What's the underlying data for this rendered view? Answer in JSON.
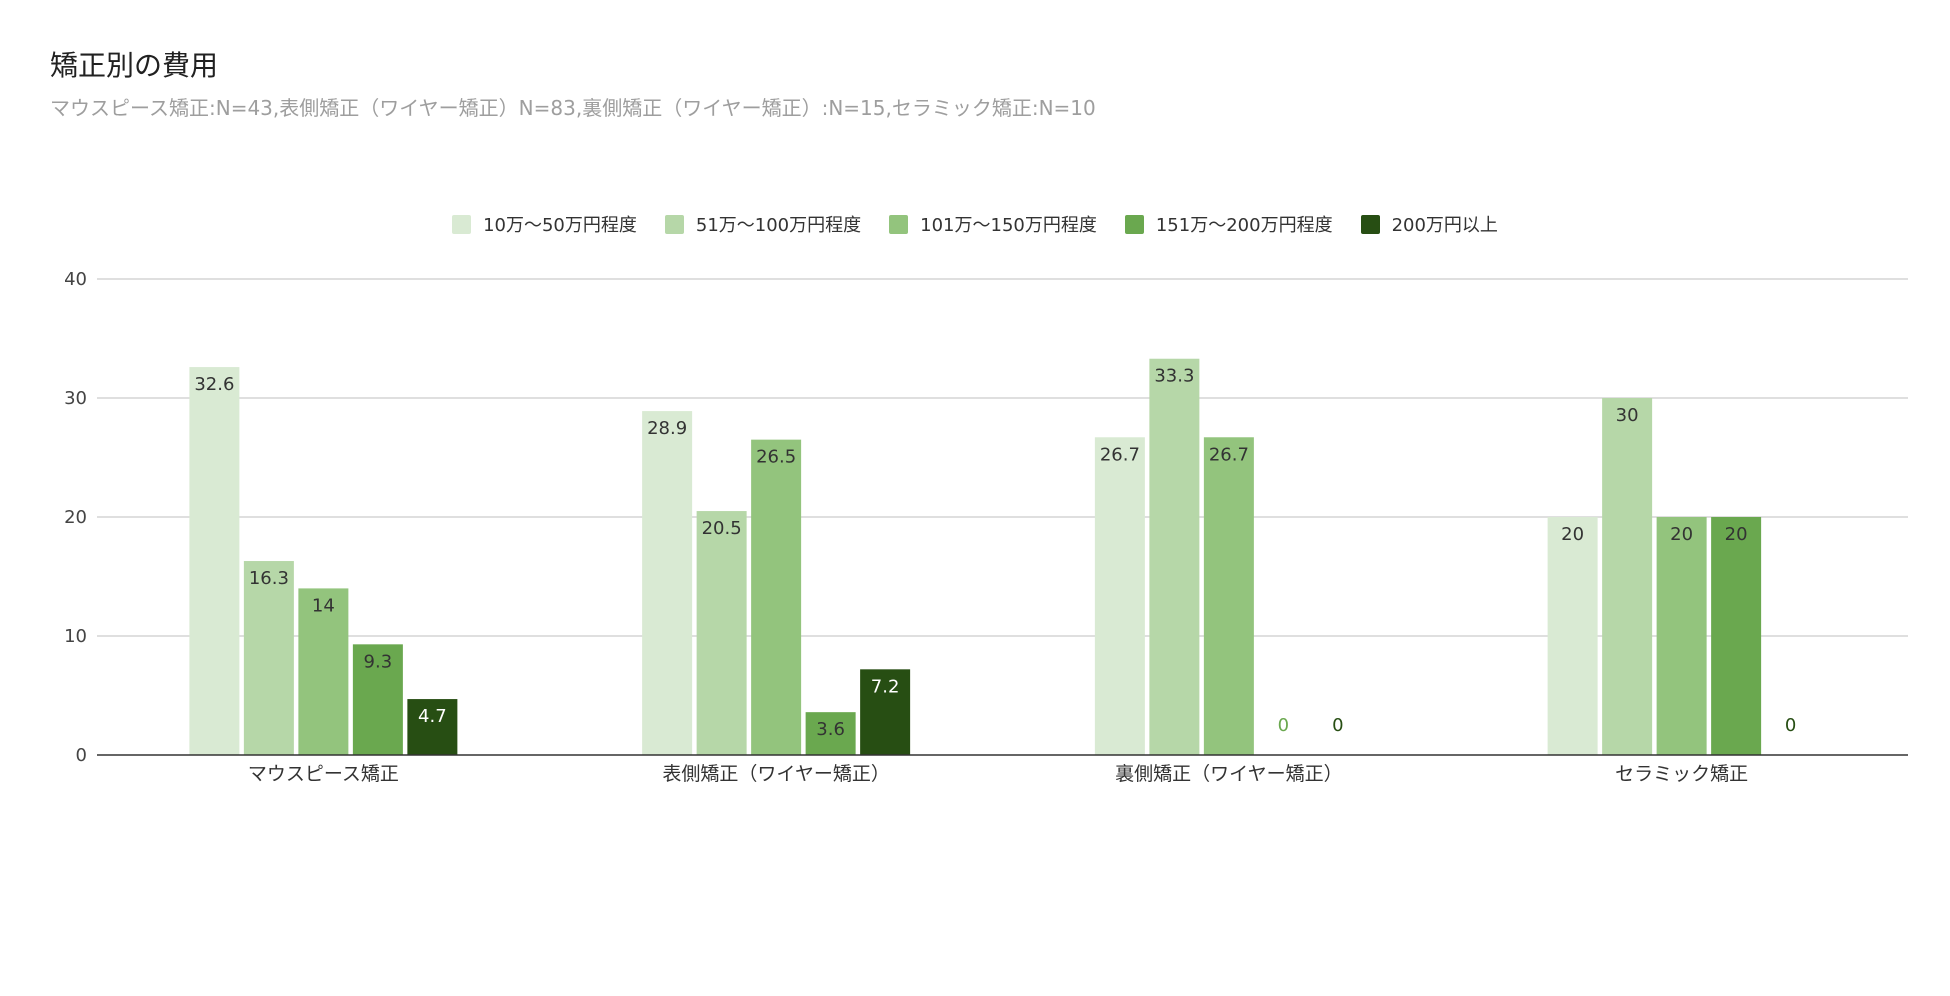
{
  "chart_data": {
    "type": "bar",
    "title": "矯正別の費用",
    "subtitle": "マウスピース矯正:N=43,表側矯正（ワイヤー矯正）N=83,裏側矯正（ワイヤー矯正）:N=15,セラミック矯正:N=10",
    "categories": [
      "マウスピース矯正",
      "表側矯正（ワイヤー矯正）",
      "裏側矯正（ワイヤー矯正）",
      "セラミック矯正"
    ],
    "series": [
      {
        "name": "10万～50万円程度",
        "color": "#d9ead3",
        "label_color": "#333333",
        "values": [
          32.6,
          28.9,
          26.7,
          20
        ]
      },
      {
        "name": "51万～100万円程度",
        "color": "#b6d7a8",
        "label_color": "#333333",
        "values": [
          16.3,
          20.5,
          33.3,
          30
        ]
      },
      {
        "name": "101万～150万円程度",
        "color": "#93c47d",
        "label_color": "#333333",
        "values": [
          14,
          26.5,
          26.7,
          20
        ]
      },
      {
        "name": "151万～200万円程度",
        "color": "#6aa84f",
        "label_color": "#333333",
        "values": [
          9.3,
          3.6,
          0,
          20
        ]
      },
      {
        "name": "200万円以上",
        "color": "#274e13",
        "label_color": "#ffffff",
        "values": [
          4.7,
          7.2,
          0,
          0
        ]
      }
    ],
    "ylim": [
      0,
      40
    ],
    "yticks": [
      "0",
      "10",
      "20",
      "30",
      "40"
    ],
    "grid": true,
    "legend_position": "top"
  }
}
